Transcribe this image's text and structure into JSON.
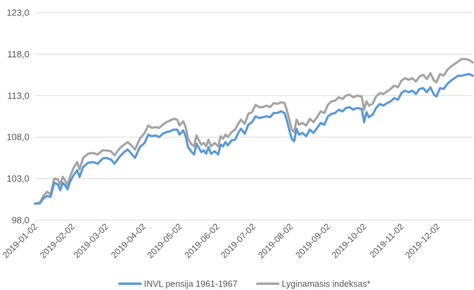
{
  "chart_data": {
    "type": "line",
    "title": "",
    "xlabel": "",
    "ylabel": "",
    "ylim": [
      98.0,
      123.0
    ],
    "yticks": [
      "98,0",
      "103,0",
      "108,0",
      "113,0",
      "118,0",
      "123,0"
    ],
    "ytick_values": [
      98,
      103,
      108,
      113,
      118,
      123
    ],
    "xlim": [
      "2019-01-02",
      "2019-12-31"
    ],
    "xticks": [
      "2019-01-02",
      "2019-02-02",
      "2019-03-02",
      "2019-04-02",
      "2019-05-02",
      "2019-06-02",
      "2019-07-02",
      "2019-08-02",
      "2019-09-02",
      "2019-10-02",
      "2019-11-02",
      "2019-12-02"
    ],
    "grid": "horizontal",
    "legend_position": "bottom",
    "series": [
      {
        "name": "INVL pensija 1961-1967",
        "color": "#5b9bd5",
        "points": [
          [
            "2019-01-02",
            100.0
          ],
          [
            "2019-01-06",
            100.0
          ],
          [
            "2019-01-09",
            100.6
          ],
          [
            "2019-01-12",
            100.9
          ],
          [
            "2019-01-15",
            100.8
          ],
          [
            "2019-01-18",
            102.5
          ],
          [
            "2019-01-21",
            102.3
          ],
          [
            "2019-01-23",
            101.6
          ],
          [
            "2019-01-25",
            102.5
          ],
          [
            "2019-01-27",
            102.2
          ],
          [
            "2019-01-29",
            101.7
          ],
          [
            "2019-01-31",
            102.6
          ],
          [
            "2019-02-03",
            103.4
          ],
          [
            "2019-02-06",
            104.0
          ],
          [
            "2019-02-08",
            103.2
          ],
          [
            "2019-02-11",
            104.4
          ],
          [
            "2019-02-15",
            104.9
          ],
          [
            "2019-02-19",
            105.0
          ],
          [
            "2019-02-23",
            104.8
          ],
          [
            "2019-02-27",
            105.4
          ],
          [
            "2019-03-02",
            105.5
          ],
          [
            "2019-03-06",
            105.3
          ],
          [
            "2019-03-09",
            104.8
          ],
          [
            "2019-03-13",
            105.6
          ],
          [
            "2019-03-17",
            106.2
          ],
          [
            "2019-03-20",
            106.5
          ],
          [
            "2019-03-23",
            106.0
          ],
          [
            "2019-03-26",
            105.5
          ],
          [
            "2019-03-30",
            106.8
          ],
          [
            "2019-04-03",
            107.3
          ],
          [
            "2019-04-06",
            108.3
          ],
          [
            "2019-04-09",
            108.1
          ],
          [
            "2019-04-12",
            108.2
          ],
          [
            "2019-04-15",
            108.0
          ],
          [
            "2019-04-18",
            108.4
          ],
          [
            "2019-04-21",
            108.6
          ],
          [
            "2019-04-24",
            108.7
          ],
          [
            "2019-04-27",
            108.9
          ],
          [
            "2019-04-30",
            108.9
          ],
          [
            "2019-05-02",
            108.3
          ],
          [
            "2019-05-05",
            108.8
          ],
          [
            "2019-05-07",
            108.1
          ],
          [
            "2019-05-09",
            106.8
          ],
          [
            "2019-05-12",
            106.2
          ],
          [
            "2019-05-14",
            105.9
          ],
          [
            "2019-05-16",
            107.2
          ],
          [
            "2019-05-18",
            106.7
          ],
          [
            "2019-05-20",
            106.2
          ],
          [
            "2019-05-22",
            106.4
          ],
          [
            "2019-05-24",
            106.0
          ],
          [
            "2019-05-26",
            106.8
          ],
          [
            "2019-05-28",
            106.0
          ],
          [
            "2019-05-31",
            106.3
          ],
          [
            "2019-06-03",
            105.9
          ],
          [
            "2019-06-05",
            107.1
          ],
          [
            "2019-06-07",
            106.9
          ],
          [
            "2019-06-09",
            107.4
          ],
          [
            "2019-06-11",
            107.0
          ],
          [
            "2019-06-14",
            107.6
          ],
          [
            "2019-06-17",
            107.7
          ],
          [
            "2019-06-20",
            108.6
          ],
          [
            "2019-06-22",
            109.0
          ],
          [
            "2019-06-25",
            108.4
          ],
          [
            "2019-06-28",
            109.5
          ],
          [
            "2019-07-01",
            109.8
          ],
          [
            "2019-07-04",
            110.5
          ],
          [
            "2019-07-07",
            110.3
          ],
          [
            "2019-07-10",
            110.4
          ],
          [
            "2019-07-13",
            110.5
          ],
          [
            "2019-07-16",
            110.4
          ],
          [
            "2019-07-19",
            110.9
          ],
          [
            "2019-07-22",
            110.9
          ],
          [
            "2019-07-25",
            111.1
          ],
          [
            "2019-07-28",
            110.9
          ],
          [
            "2019-07-30",
            110.0
          ],
          [
            "2019-08-01",
            108.8
          ],
          [
            "2019-08-03",
            107.8
          ],
          [
            "2019-08-05",
            107.5
          ],
          [
            "2019-08-07",
            109.0
          ],
          [
            "2019-08-09",
            108.3
          ],
          [
            "2019-08-12",
            108.5
          ],
          [
            "2019-08-15",
            108.1
          ],
          [
            "2019-08-18",
            108.9
          ],
          [
            "2019-08-21",
            108.5
          ],
          [
            "2019-08-24",
            109.1
          ],
          [
            "2019-08-27",
            109.7
          ],
          [
            "2019-08-30",
            109.5
          ],
          [
            "2019-09-02",
            110.5
          ],
          [
            "2019-09-05",
            110.8
          ],
          [
            "2019-09-08",
            110.9
          ],
          [
            "2019-09-11",
            111.3
          ],
          [
            "2019-09-14",
            111.1
          ],
          [
            "2019-09-17",
            111.5
          ],
          [
            "2019-09-20",
            111.6
          ],
          [
            "2019-09-23",
            111.3
          ],
          [
            "2019-09-26",
            111.5
          ],
          [
            "2019-09-30",
            111.4
          ],
          [
            "2019-10-02",
            109.8
          ],
          [
            "2019-10-04",
            111.0
          ],
          [
            "2019-10-06",
            110.4
          ],
          [
            "2019-10-09",
            110.7
          ],
          [
            "2019-10-12",
            111.5
          ],
          [
            "2019-10-15",
            112.0
          ],
          [
            "2019-10-18",
            111.8
          ],
          [
            "2019-10-21",
            112.1
          ],
          [
            "2019-10-24",
            112.3
          ],
          [
            "2019-10-27",
            112.7
          ],
          [
            "2019-10-30",
            112.5
          ],
          [
            "2019-11-02",
            113.3
          ],
          [
            "2019-11-05",
            113.6
          ],
          [
            "2019-11-08",
            113.4
          ],
          [
            "2019-11-11",
            113.6
          ],
          [
            "2019-11-14",
            113.2
          ],
          [
            "2019-11-17",
            113.8
          ],
          [
            "2019-11-20",
            113.9
          ],
          [
            "2019-11-23",
            113.4
          ],
          [
            "2019-11-26",
            114.0
          ],
          [
            "2019-11-29",
            113.1
          ],
          [
            "2019-12-01",
            112.9
          ],
          [
            "2019-12-04",
            113.9
          ],
          [
            "2019-12-07",
            113.8
          ],
          [
            "2019-12-10",
            114.4
          ],
          [
            "2019-12-13",
            114.8
          ],
          [
            "2019-12-16",
            115.1
          ],
          [
            "2019-12-19",
            115.4
          ],
          [
            "2019-12-22",
            115.4
          ],
          [
            "2019-12-25",
            115.5
          ],
          [
            "2019-12-28",
            115.6
          ],
          [
            "2019-12-31",
            115.4
          ]
        ]
      },
      {
        "name": "Lyginamasis indeksas*",
        "color": "#a5a5a5",
        "points": [
          [
            "2019-01-02",
            100.0
          ],
          [
            "2019-01-06",
            100.1
          ],
          [
            "2019-01-09",
            100.9
          ],
          [
            "2019-01-12",
            101.4
          ],
          [
            "2019-01-15",
            101.1
          ],
          [
            "2019-01-18",
            103.0
          ],
          [
            "2019-01-21",
            102.9
          ],
          [
            "2019-01-23",
            102.3
          ],
          [
            "2019-01-25",
            103.2
          ],
          [
            "2019-01-27",
            102.8
          ],
          [
            "2019-01-29",
            102.2
          ],
          [
            "2019-01-31",
            103.2
          ],
          [
            "2019-02-03",
            104.3
          ],
          [
            "2019-02-06",
            105.0
          ],
          [
            "2019-02-08",
            104.1
          ],
          [
            "2019-02-11",
            105.5
          ],
          [
            "2019-02-15",
            106.0
          ],
          [
            "2019-02-19",
            106.1
          ],
          [
            "2019-02-23",
            105.9
          ],
          [
            "2019-02-27",
            106.4
          ],
          [
            "2019-03-02",
            106.4
          ],
          [
            "2019-03-06",
            106.3
          ],
          [
            "2019-03-09",
            105.8
          ],
          [
            "2019-03-13",
            106.6
          ],
          [
            "2019-03-17",
            107.1
          ],
          [
            "2019-03-20",
            107.4
          ],
          [
            "2019-03-23",
            107.0
          ],
          [
            "2019-03-26",
            106.5
          ],
          [
            "2019-03-30",
            107.8
          ],
          [
            "2019-04-03",
            108.5
          ],
          [
            "2019-04-06",
            109.4
          ],
          [
            "2019-04-09",
            109.1
          ],
          [
            "2019-04-12",
            109.2
          ],
          [
            "2019-04-15",
            109.1
          ],
          [
            "2019-04-18",
            109.5
          ],
          [
            "2019-04-21",
            109.8
          ],
          [
            "2019-04-24",
            110.0
          ],
          [
            "2019-04-27",
            110.2
          ],
          [
            "2019-04-30",
            110.1
          ],
          [
            "2019-05-02",
            109.4
          ],
          [
            "2019-05-05",
            109.9
          ],
          [
            "2019-05-07",
            109.2
          ],
          [
            "2019-05-09",
            107.8
          ],
          [
            "2019-05-12",
            107.1
          ],
          [
            "2019-05-14",
            106.9
          ],
          [
            "2019-05-16",
            108.2
          ],
          [
            "2019-05-18",
            107.6
          ],
          [
            "2019-05-20",
            107.1
          ],
          [
            "2019-05-22",
            107.3
          ],
          [
            "2019-05-24",
            106.9
          ],
          [
            "2019-05-26",
            107.7
          ],
          [
            "2019-05-28",
            106.9
          ],
          [
            "2019-05-31",
            107.3
          ],
          [
            "2019-06-03",
            106.9
          ],
          [
            "2019-06-05",
            108.1
          ],
          [
            "2019-06-07",
            107.8
          ],
          [
            "2019-06-09",
            108.3
          ],
          [
            "2019-06-11",
            108.0
          ],
          [
            "2019-06-14",
            108.6
          ],
          [
            "2019-06-17",
            108.9
          ],
          [
            "2019-06-20",
            109.7
          ],
          [
            "2019-06-22",
            110.1
          ],
          [
            "2019-06-25",
            109.6
          ],
          [
            "2019-06-28",
            110.8
          ],
          [
            "2019-07-01",
            111.0
          ],
          [
            "2019-07-04",
            111.9
          ],
          [
            "2019-07-07",
            111.6
          ],
          [
            "2019-07-10",
            111.6
          ],
          [
            "2019-07-13",
            111.8
          ],
          [
            "2019-07-16",
            111.6
          ],
          [
            "2019-07-19",
            112.1
          ],
          [
            "2019-07-22",
            112.0
          ],
          [
            "2019-07-25",
            112.2
          ],
          [
            "2019-07-28",
            112.1
          ],
          [
            "2019-07-30",
            111.2
          ],
          [
            "2019-08-01",
            110.1
          ],
          [
            "2019-08-03",
            108.9
          ],
          [
            "2019-08-05",
            108.6
          ],
          [
            "2019-08-07",
            110.1
          ],
          [
            "2019-08-09",
            109.5
          ],
          [
            "2019-08-12",
            109.7
          ],
          [
            "2019-08-15",
            109.4
          ],
          [
            "2019-08-18",
            110.2
          ],
          [
            "2019-08-21",
            109.8
          ],
          [
            "2019-08-24",
            110.4
          ],
          [
            "2019-08-27",
            111.1
          ],
          [
            "2019-08-30",
            110.9
          ],
          [
            "2019-09-02",
            111.9
          ],
          [
            "2019-09-05",
            112.3
          ],
          [
            "2019-09-08",
            112.4
          ],
          [
            "2019-09-11",
            112.8
          ],
          [
            "2019-09-14",
            112.6
          ],
          [
            "2019-09-17",
            113.0
          ],
          [
            "2019-09-20",
            113.1
          ],
          [
            "2019-09-23",
            112.8
          ],
          [
            "2019-09-26",
            113.0
          ],
          [
            "2019-09-30",
            112.9
          ],
          [
            "2019-10-02",
            111.3
          ],
          [
            "2019-10-04",
            112.3
          ],
          [
            "2019-10-06",
            111.8
          ],
          [
            "2019-10-09",
            112.0
          ],
          [
            "2019-10-12",
            112.9
          ],
          [
            "2019-10-15",
            113.3
          ],
          [
            "2019-10-18",
            113.2
          ],
          [
            "2019-10-21",
            113.5
          ],
          [
            "2019-10-24",
            113.8
          ],
          [
            "2019-10-27",
            114.2
          ],
          [
            "2019-10-30",
            114.0
          ],
          [
            "2019-11-02",
            114.8
          ],
          [
            "2019-11-05",
            115.1
          ],
          [
            "2019-11-08",
            114.9
          ],
          [
            "2019-11-11",
            115.1
          ],
          [
            "2019-11-14",
            114.7
          ],
          [
            "2019-11-17",
            115.3
          ],
          [
            "2019-11-20",
            115.5
          ],
          [
            "2019-11-23",
            115.0
          ],
          [
            "2019-11-26",
            115.7
          ],
          [
            "2019-11-29",
            114.8
          ],
          [
            "2019-12-01",
            114.6
          ],
          [
            "2019-12-04",
            115.6
          ],
          [
            "2019-12-07",
            115.4
          ],
          [
            "2019-12-10",
            116.1
          ],
          [
            "2019-12-13",
            116.5
          ],
          [
            "2019-12-16",
            116.8
          ],
          [
            "2019-12-19",
            117.1
          ],
          [
            "2019-12-22",
            117.4
          ],
          [
            "2019-12-25",
            117.4
          ],
          [
            "2019-12-28",
            117.3
          ],
          [
            "2019-12-31",
            117.0
          ]
        ]
      }
    ]
  }
}
